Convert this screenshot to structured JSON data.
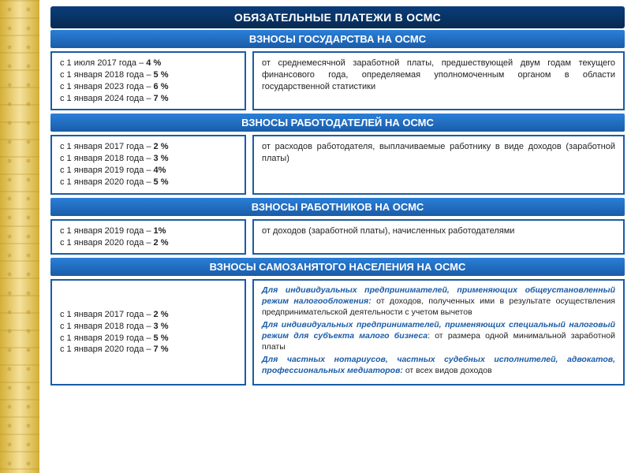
{
  "colors": {
    "title_bg_top": "#0a3d7a",
    "title_bg_bottom": "#072a52",
    "header_bg_top": "#2a7fd8",
    "header_bg_bottom": "#1a5ca8",
    "border": "#1a5ca8",
    "text": "#222222",
    "ornament1": "#d4af37",
    "ornament2": "#f4e19c"
  },
  "fontsize": {
    "title": 14,
    "header": 13,
    "body": 11,
    "self": 10.5
  },
  "main_title": "ОБЯЗАТЕЛЬНЫЕ ПЛАТЕЖИ В ОСМС",
  "sections": {
    "state": {
      "header": "ВЗНОСЫ ГОСУДАРСТВА НА ОСМС",
      "rates": [
        {
          "date": "с 1 июля 2017 года – ",
          "pct": "4 %"
        },
        {
          "date": "с 1 января 2018 года – ",
          "pct": "5 %"
        },
        {
          "date": "с 1 января 2023 года – ",
          "pct": "6 %"
        },
        {
          "date": "с 1 января 2024 года – ",
          "pct": "7 %"
        }
      ],
      "desc": "от среднемесячной заработной платы, предшествующей двум годам текущего финансового года, определяемая уполномоченным органом в области государственной статистики"
    },
    "employer": {
      "header": "ВЗНОСЫ РАБОТОДАТЕЛЕЙ НА ОСМС",
      "rates": [
        {
          "date": "с 1 января 2017 года – ",
          "pct": "2 %"
        },
        {
          "date": "с 1 января 2018 года – ",
          "pct": "3 %"
        },
        {
          "date": "с 1 января 2019 года – ",
          "pct": "4%"
        },
        {
          "date": "с 1 января 2020 года – ",
          "pct": "5 %"
        }
      ],
      "desc": "от расходов работодателя, выплачиваемые работнику в виде доходов (заработной платы)"
    },
    "employee": {
      "header": "ВЗНОСЫ РАБОТНИКОВ НА ОСМС",
      "rates": [
        {
          "date": "с 1 января 2019 года – ",
          "pct": "1%"
        },
        {
          "date": "с 1 января 2020 года – ",
          "pct": "2 %"
        }
      ],
      "desc": "от доходов (заработной платы), начисленных работодателями"
    },
    "self": {
      "header": "ВЗНОСЫ  САМОЗАНЯТОГО НАСЕЛЕНИЯ НА ОСМС",
      "rates": [
        {
          "date": "с 1 января 2017 года – ",
          "pct": "2 %"
        },
        {
          "date": "с 1 января 2018 года – ",
          "pct": "3 %"
        },
        {
          "date": "с 1 января 2019 года – ",
          "pct": "5 %"
        },
        {
          "date": "с 1 января 2020 года – ",
          "pct": "7 %"
        }
      ],
      "desc_parts": {
        "p1_hi": "Для индивидуальных предпринимателей, применяющих общеустановленный режим налогообложения:",
        "p1_txt": " от доходов, полученных ими в результате осуществления предпринимательской деятельности с учетом вычетов",
        "p2_hi": "Для индивидуальных предпринимателей, применяющих специальный налоговый режим для субъекта малого бизнеса",
        "p2_txt": ": от размера одной минимальной заработной платы",
        "p3_hi": "Для частных нотариусов, частных судебных исполнителей, адвокатов, профессиональных медиаторов:",
        "p3_txt": " от всех видов доходов"
      }
    }
  }
}
